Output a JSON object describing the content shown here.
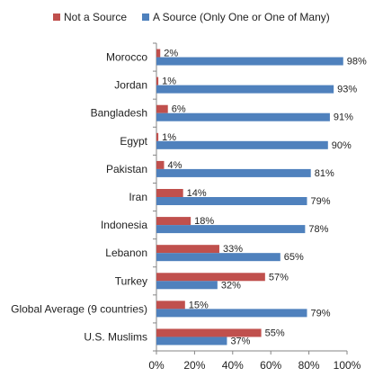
{
  "chart_data": {
    "type": "bar",
    "orientation": "horizontal",
    "categories": [
      "Morocco",
      "Jordan",
      "Bangladesh",
      "Egypt",
      "Pakistan",
      "Iran",
      "Indonesia",
      "Lebanon",
      "Turkey",
      "Global Average (9 countries)",
      "U.S. Muslims"
    ],
    "series": [
      {
        "name": "Not a Source",
        "color": "#c0504d",
        "values": [
          2,
          1,
          6,
          1,
          4,
          14,
          18,
          33,
          57,
          15,
          55
        ],
        "labels": [
          "2%",
          "1%",
          "6%",
          "1%",
          "4%",
          "14%",
          "18%",
          "33%",
          "57%",
          "15%",
          "55%"
        ]
      },
      {
        "name": "A Source (Only One or One of Many)",
        "color": "#4f81bd",
        "values": [
          98,
          93,
          91,
          90,
          81,
          79,
          78,
          65,
          32,
          79,
          37
        ],
        "labels": [
          "98%",
          "93%",
          "91%",
          "90%",
          "81%",
          "79%",
          "78%",
          "65%",
          "32%",
          "79%",
          "37%"
        ]
      }
    ],
    "xlim": [
      0,
      100
    ],
    "xticks": [
      0,
      20,
      40,
      60,
      80,
      100
    ],
    "xtick_labels": [
      "0%",
      "20%",
      "40%",
      "60%",
      "80%",
      "100%"
    ],
    "legend_position": "top",
    "grid": false
  }
}
